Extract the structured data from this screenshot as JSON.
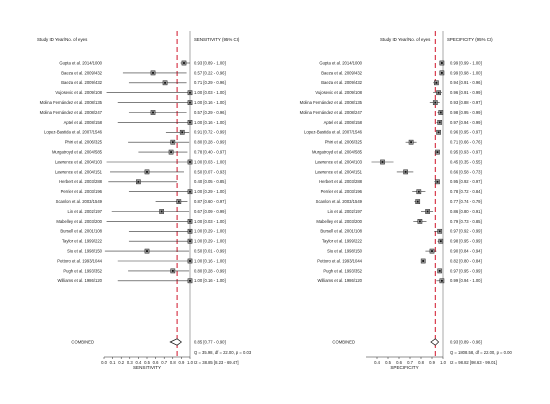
{
  "chart_data": [
    {
      "type": "forest",
      "panel": "sensitivity",
      "header_label": "Study ID Year/No. of eyes",
      "header_ci": "SENSITIVITY (95% CI)",
      "xlabel": "SENSITIVITY",
      "xlim": [
        0.0,
        1.0
      ],
      "xticks": [
        "0.0",
        "0.1",
        "0.2",
        "0.3",
        "0.4",
        "0.5",
        "0.6",
        "0.7",
        "0.8",
        "0.9",
        "1.0"
      ],
      "studies": [
        {
          "label": "Gupta et al. 2014/1000",
          "est": 0.93,
          "lo": 0.89,
          "hi": 1.0,
          "ci": "0.93 [0.89 - 1.00]"
        },
        {
          "label": "Baeza et al. 2009/432",
          "est": 0.57,
          "lo": 0.22,
          "hi": 0.96,
          "ci": "0.57 [0.22 - 0.96]"
        },
        {
          "label": "Baeza et al. 2009/432",
          "est": 0.71,
          "lo": 0.29,
          "hi": 0.96,
          "ci": "0.71 [0.29 - 0.96]"
        },
        {
          "label": "Vujosevic et al. 2009/108",
          "est": 1.0,
          "lo": 0.03,
          "hi": 1.0,
          "ci": "1.00 [0.03 - 1.00]"
        },
        {
          "label": "Molina Fernández et al. 2008/135",
          "est": 1.0,
          "lo": 0.16,
          "hi": 1.0,
          "ci": "1.00 [0.16 - 1.00]"
        },
        {
          "label": "Molina Fernández et al. 2008/247",
          "est": 0.57,
          "lo": 0.29,
          "hi": 0.96,
          "ci": "0.57 [0.29 - 0.96]"
        },
        {
          "label": "Aptel et al. 2008/158",
          "est": 1.0,
          "lo": 0.16,
          "hi": 1.0,
          "ci": "1.00 [0.16 - 1.00]"
        },
        {
          "label": "Lopez-Bastida et al. 2007/1546",
          "est": 0.91,
          "lo": 0.72,
          "hi": 0.99,
          "ci": "0.91 [0.72 - 0.99]"
        },
        {
          "label": "Phiri et al. 2006/325",
          "est": 0.8,
          "lo": 0.28,
          "hi": 0.99,
          "ci": "0.80 [0.28 - 0.99]"
        },
        {
          "label": "Murgatroyd et al. 2004/585",
          "est": 0.78,
          "lo": 0.4,
          "hi": 0.97,
          "ci": "0.78 [0.40 - 0.97]"
        },
        {
          "label": "Lawrence et al. 2004/103",
          "est": 1.0,
          "lo": 0.03,
          "hi": 1.0,
          "ci": "1.00 [0.03 - 1.00]"
        },
        {
          "label": "Lawrence et al. 2004/151",
          "est": 0.5,
          "lo": 0.07,
          "hi": 0.93,
          "ci": "0.50 [0.07 - 0.93]"
        },
        {
          "label": "Herbert et al. 2003/288",
          "est": 0.4,
          "lo": 0.05,
          "hi": 0.85,
          "ci": "0.40 [0.05 - 0.85]"
        },
        {
          "label": "Perrier et al. 2003/196",
          "est": 1.0,
          "lo": 0.29,
          "hi": 1.0,
          "ci": "1.00 [0.29 - 1.00]"
        },
        {
          "label": "Scanlon et al. 2003/1549",
          "est": 0.87,
          "lo": 0.6,
          "hi": 0.97,
          "ci": "0.87 [0.60 - 0.97]"
        },
        {
          "label": "Lin et al. 2002/197",
          "est": 0.67,
          "lo": 0.09,
          "hi": 0.99,
          "ci": "0.67 [0.09 - 0.99]"
        },
        {
          "label": "Mabelley et al. 2003/200",
          "est": 1.0,
          "lo": 0.03,
          "hi": 1.0,
          "ci": "1.00 [0.03 - 1.00]"
        },
        {
          "label": "Bursell et al. 2001/108",
          "est": 1.0,
          "lo": 0.29,
          "hi": 1.0,
          "ci": "1.00 [0.29 - 1.00]"
        },
        {
          "label": "Taylor et al. 1999/222",
          "est": 1.0,
          "lo": 0.29,
          "hi": 1.0,
          "ci": "1.00 [0.29 - 1.00]"
        },
        {
          "label": "Siu et al. 1998/150",
          "est": 0.5,
          "lo": 0.01,
          "hi": 0.99,
          "ci": "0.50 [0.01 - 0.99]"
        },
        {
          "label": "Pettoro et al. 1993/1044",
          "est": 1.0,
          "lo": 0.16,
          "hi": 1.0,
          "ci": "1.00 [0.16 - 1.00]"
        },
        {
          "label": "Pugh et al. 1993/352",
          "est": 0.8,
          "lo": 0.28,
          "hi": 0.99,
          "ci": "0.80 [0.28 - 0.99]"
        },
        {
          "label": "Williams et al. 1986/120",
          "est": 1.0,
          "lo": 0.16,
          "hi": 1.0,
          "ci": "1.00 [0.16 - 1.00]"
        }
      ],
      "combined": {
        "label": "COMBINED",
        "est": 0.85,
        "lo": 0.77,
        "hi": 0.9,
        "ci": "0.85 [0.77 - 0.90]"
      },
      "stat_q": "Q = 35.98, df = 22.00, p = 0.03",
      "stat_i2": "I2 = 38.85 [8.23 - 69.47]"
    },
    {
      "type": "forest",
      "panel": "specificity",
      "header_label": "Study ID Year/No. of eyes",
      "header_ci": "SPECIFICITY (95% CI)",
      "xlabel": "SPECIFICITY",
      "xlim": [
        0.3,
        1.0
      ],
      "xticks": [
        "0.4",
        "0.5",
        "0.6",
        "0.7",
        "0.8",
        "0.9",
        "1.0"
      ],
      "studies": [
        {
          "label": "Gupta et al. 2014/1000",
          "est": 0.99,
          "lo": 0.99,
          "hi": 1.0,
          "ci": "0.99 [0.99 - 1.00]"
        },
        {
          "label": "Baeza et al. 2009/432",
          "est": 0.99,
          "lo": 0.98,
          "hi": 1.0,
          "ci": "0.99 [0.98 - 1.00]"
        },
        {
          "label": "Baeza et al. 2009/432",
          "est": 0.94,
          "lo": 0.91,
          "hi": 0.96,
          "ci": "0.94 [0.91 - 0.96]"
        },
        {
          "label": "Vujosevic et al. 2009/108",
          "est": 0.96,
          "lo": 0.91,
          "hi": 0.99,
          "ci": "0.96 [0.91 - 0.99]"
        },
        {
          "label": "Molina Fernández et al. 2008/135",
          "est": 0.93,
          "lo": 0.88,
          "hi": 0.97,
          "ci": "0.93 [0.88 - 0.97]"
        },
        {
          "label": "Molina Fernández et al. 2008/247",
          "est": 0.98,
          "lo": 0.95,
          "hi": 0.99,
          "ci": "0.98 [0.95 - 0.99]"
        },
        {
          "label": "Aptel et al. 2008/158",
          "est": 0.97,
          "lo": 0.94,
          "hi": 0.99,
          "ci": "0.97 [0.94 - 0.99]"
        },
        {
          "label": "Lopez-Bastida et al. 2007/1546",
          "est": 0.96,
          "lo": 0.95,
          "hi": 0.97,
          "ci": "0.96 [0.95 - 0.97]"
        },
        {
          "label": "Phiri et al. 2006/325",
          "est": 0.71,
          "lo": 0.66,
          "hi": 0.76,
          "ci": "0.71 [0.66 - 0.76]"
        },
        {
          "label": "Murgatroyd et al. 2004/585",
          "est": 0.95,
          "lo": 0.93,
          "hi": 0.97,
          "ci": "0.95 [0.93 - 0.97]"
        },
        {
          "label": "Lawrence et al. 2004/103",
          "est": 0.45,
          "lo": 0.35,
          "hi": 0.55,
          "ci": "0.45 [0.35 - 0.55]"
        },
        {
          "label": "Lawrence et al. 2004/151",
          "est": 0.66,
          "lo": 0.58,
          "hi": 0.73,
          "ci": "0.66 [0.58 - 0.73]"
        },
        {
          "label": "Herbert et al. 2003/288",
          "est": 0.95,
          "lo": 0.92,
          "hi": 0.97,
          "ci": "0.95 [0.92 - 0.97]"
        },
        {
          "label": "Perrier et al. 2003/196",
          "est": 0.78,
          "lo": 0.72,
          "hi": 0.84,
          "ci": "0.78 [0.72 - 0.84]"
        },
        {
          "label": "Scanlon et al. 2003/1549",
          "est": 0.77,
          "lo": 0.74,
          "hi": 0.79,
          "ci": "0.77 [0.74 - 0.79]"
        },
        {
          "label": "Lin et al. 2002/197",
          "est": 0.86,
          "lo": 0.8,
          "hi": 0.91,
          "ci": "0.86 [0.80 - 0.91]"
        },
        {
          "label": "Mabelley et al. 2003/200",
          "est": 0.79,
          "lo": 0.73,
          "hi": 0.85,
          "ci": "0.79 [0.73 - 0.85]"
        },
        {
          "label": "Bursell et al. 2001/108",
          "est": 0.97,
          "lo": 0.92,
          "hi": 0.99,
          "ci": "0.97 [0.92 - 0.99]"
        },
        {
          "label": "Taylor et al. 1999/222",
          "est": 0.98,
          "lo": 0.95,
          "hi": 0.99,
          "ci": "0.98 [0.95 - 0.99]"
        },
        {
          "label": "Siu et al. 1998/150",
          "est": 0.9,
          "lo": 0.84,
          "hi": 0.94,
          "ci": "0.90 [0.84 - 0.94]"
        },
        {
          "label": "Pettoro et al. 1993/1044",
          "est": 0.82,
          "lo": 0.8,
          "hi": 0.84,
          "ci": "0.82 [0.80 - 0.84]"
        },
        {
          "label": "Pugh et al. 1993/352",
          "est": 0.97,
          "lo": 0.95,
          "hi": 0.99,
          "ci": "0.97 [0.95 - 0.99]"
        },
        {
          "label": "Williams et al. 1986/120",
          "est": 0.99,
          "lo": 0.94,
          "hi": 1.0,
          "ci": "0.99 [0.94 - 1.00]"
        }
      ],
      "combined": {
        "label": "COMBINED",
        "est": 0.93,
        "lo": 0.89,
        "hi": 0.96,
        "ci": "0.93 [0.89 - 0.96]"
      },
      "stat_q": "Q = 1808.58, df = 22.00, p = 0.00",
      "stat_i2": "I2 = 98.82 [98.63 - 99.01]"
    }
  ],
  "colors": {
    "pooled_line": "#d0142a",
    "box": "#222222",
    "ci_line": "#333333",
    "axis": "#222222"
  }
}
